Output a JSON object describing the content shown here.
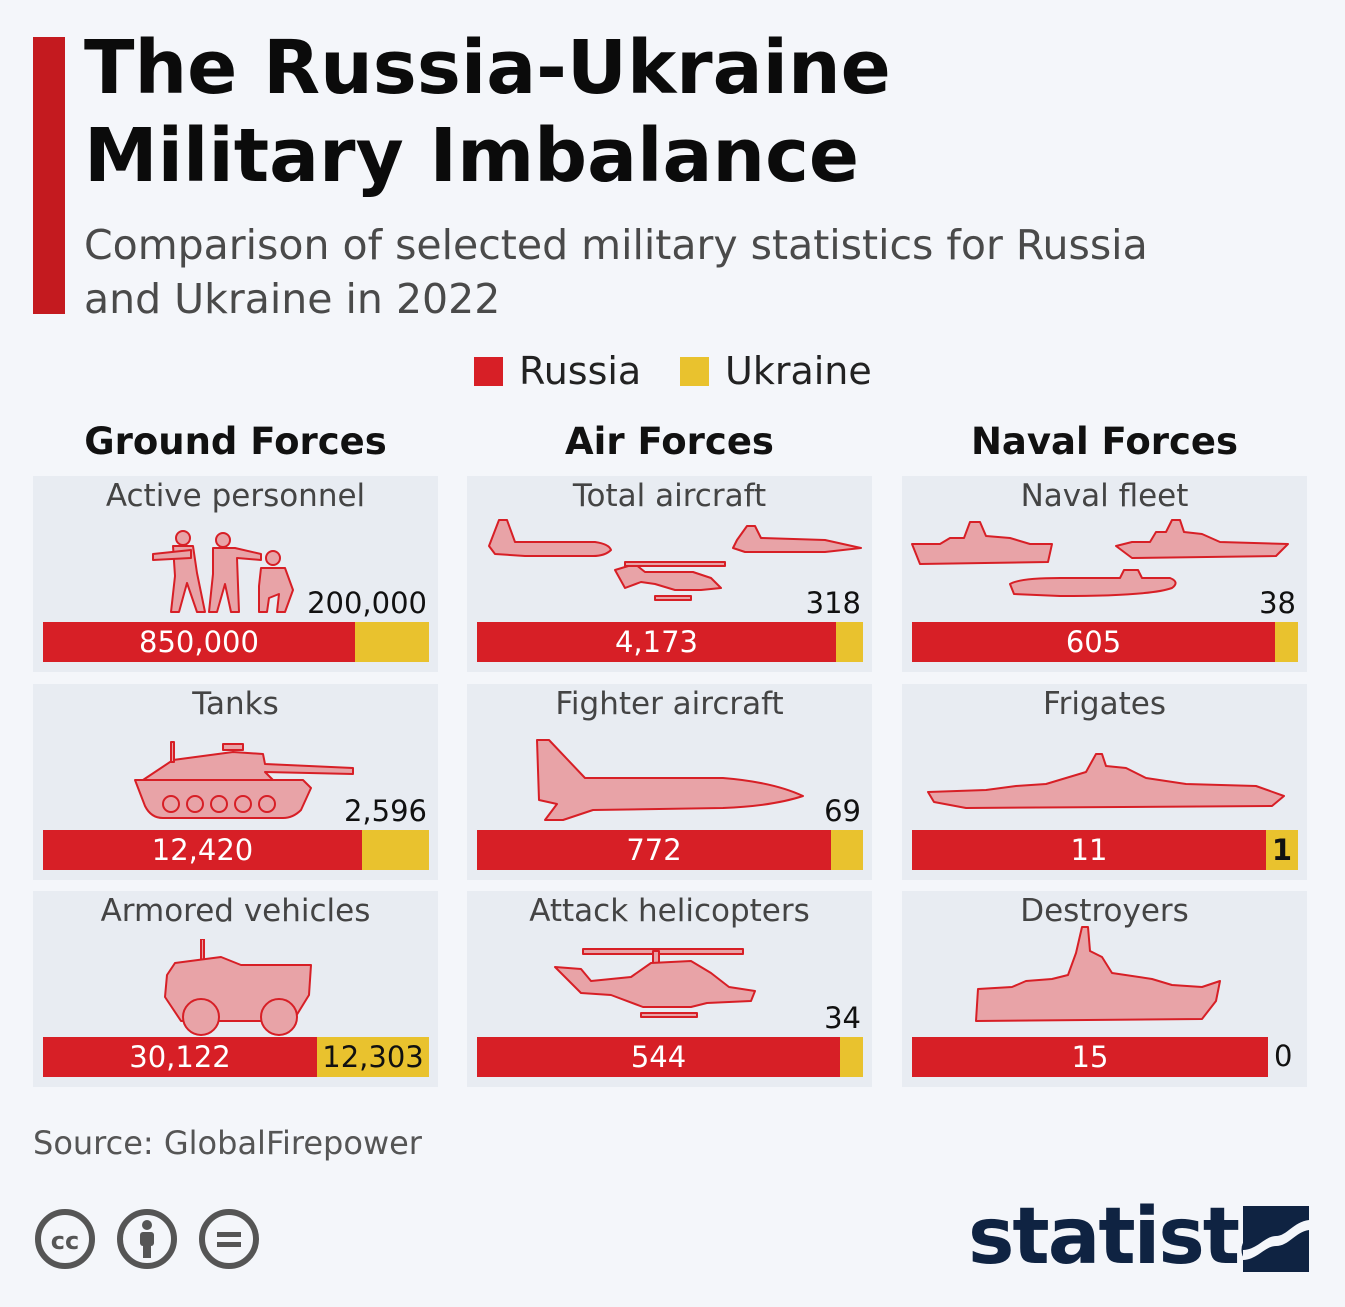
{
  "title": "The Russia-Ukraine Military Imbalance",
  "subtitle": "Comparison of selected military statistics for Russia and Ukraine in 2022",
  "legend": {
    "russia": "Russia",
    "ukraine": "Ukraine"
  },
  "colors": {
    "russia": "#d71f26",
    "ukraine": "#e9c22e",
    "accent": "#c41a1f",
    "brand": "#0f2342",
    "icon_fill": "#e8a3a7",
    "icon_stroke": "#d71f26"
  },
  "columns": [
    "Ground Forces",
    "Air Forces",
    "Naval Forces"
  ],
  "source": "Source: GlobalFirepower",
  "brand": "statista",
  "license_icons": [
    "cc-icon",
    "attribution-icon",
    "no-derivatives-icon"
  ],
  "chart_data": {
    "type": "bar",
    "orientation": "horizontal-stacked",
    "series": [
      {
        "name": "Russia",
        "color": "#d71f26"
      },
      {
        "name": "Ukraine",
        "color": "#e9c22e"
      }
    ],
    "panels": [
      {
        "group": "Ground Forces",
        "label": "Active personnel",
        "icon": "soldiers-icon",
        "russia": 850000,
        "ukraine": 200000,
        "russia_label": "850,000",
        "ukraine_label": "200,000"
      },
      {
        "group": "Ground Forces",
        "label": "Tanks",
        "icon": "tank-icon",
        "russia": 12420,
        "ukraine": 2596,
        "russia_label": "12,420",
        "ukraine_label": "2,596"
      },
      {
        "group": "Ground Forces",
        "label": "Armored vehicles",
        "icon": "armored-vehicle-icon",
        "russia": 30122,
        "ukraine": 12303,
        "russia_label": "30,122",
        "ukraine_label": "12,303"
      },
      {
        "group": "Air Forces",
        "label": "Total aircraft",
        "icon": "aircraft-group-icon",
        "russia": 4173,
        "ukraine": 318,
        "russia_label": "4,173",
        "ukraine_label": "318"
      },
      {
        "group": "Air Forces",
        "label": "Fighter aircraft",
        "icon": "fighter-jet-icon",
        "russia": 772,
        "ukraine": 69,
        "russia_label": "772",
        "ukraine_label": "69"
      },
      {
        "group": "Air Forces",
        "label": "Attack helicopters",
        "icon": "helicopter-icon",
        "russia": 544,
        "ukraine": 34,
        "russia_label": "544",
        "ukraine_label": "34"
      },
      {
        "group": "Naval Forces",
        "label": "Naval fleet",
        "icon": "naval-fleet-icon",
        "russia": 605,
        "ukraine": 38,
        "russia_label": "605",
        "ukraine_label": "38"
      },
      {
        "group": "Naval Forces",
        "label": "Frigates",
        "icon": "frigate-icon",
        "russia": 11,
        "ukraine": 1,
        "russia_label": "11",
        "ukraine_label": "1"
      },
      {
        "group": "Naval Forces",
        "label": "Destroyers",
        "icon": "destroyer-icon",
        "russia": 15,
        "ukraine": 0,
        "russia_label": "15",
        "ukraine_label": "0"
      }
    ]
  }
}
